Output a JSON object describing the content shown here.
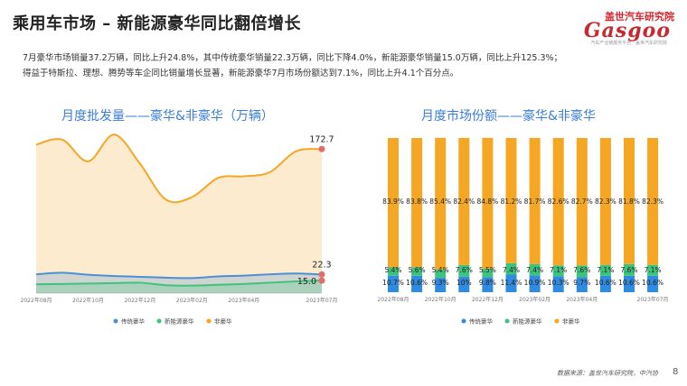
{
  "header": {
    "title": "乘用车市场 – 新能源豪华同比翻倍增长",
    "logo_cn": "盖世汽车研究院",
    "logo_word": "Gasgoo",
    "logo_sub": "汽车产业链服务平台 · 盖世汽车研究院"
  },
  "description": {
    "line1": "7月豪华市场销量37.2万辆，同比上升24.8%，其中传统豪华销量22.3万辆，同比下降4.0%，新能源豪华销量15.0万辆，同比上升125.3%；",
    "line2": "得益于特斯拉、理想、腾势等车企同比销量增长显著，新能源豪华7月市场份额达到7.1%，同比上升4.1个百分点。"
  },
  "footer": {
    "source": "数据来源：盖世汽车研究院，中汽协",
    "page": "8"
  },
  "chart_data": [
    {
      "type": "area",
      "title": "月度批发量——豪华&非豪华（万辆）",
      "x": [
        "2022年08月",
        "2022年09月",
        "2022年10月",
        "2022年11月",
        "2022年12月",
        "2023年01月",
        "2023年02月",
        "2023年03月",
        "2023年04月",
        "2023年05月",
        "2023年06月",
        "2023年07月"
      ],
      "x_tick_labels": [
        "2022年08月",
        "2022年10月",
        "2022年12月",
        "2023年02月",
        "2023年04月",
        "2023年07月"
      ],
      "series": [
        {
          "name": "传统豪华",
          "color": "#4a90d9",
          "values": [
            22.5,
            24.5,
            22.0,
            20.5,
            19.5,
            18.5,
            18.0,
            20.0,
            21.0,
            22.5,
            23.5,
            22.3
          ]
        },
        {
          "name": "新能源豪华",
          "color": "#3cc47c",
          "values": [
            10.5,
            11.0,
            11.5,
            12.0,
            12.5,
            9.5,
            9.0,
            10.0,
            11.0,
            12.5,
            14.0,
            15.0
          ]
        },
        {
          "name": "非豪华",
          "color": "#f5a623",
          "values": [
            178,
            184,
            158,
            190,
            155,
            112,
            115,
            138,
            140,
            145,
            170,
            172.7
          ]
        }
      ],
      "data_labels": [
        {
          "series": "非豪华",
          "x": "2023年07月",
          "text": "172.7"
        },
        {
          "series": "传统豪华",
          "x": "2023年07月",
          "text": "22.3"
        },
        {
          "series": "新能源豪华",
          "x": "2023年07月",
          "text": "15.0"
        }
      ],
      "legend": "bottom",
      "grid": false
    },
    {
      "type": "bar",
      "stacked": true,
      "title": "月度市场份额——豪华&非豪华",
      "categories": [
        "2022年08月",
        "2022年09月",
        "2022年10月",
        "2022年11月",
        "2022年12月",
        "2023年01月",
        "2023年02月",
        "2023年03月",
        "2023年04月",
        "2023年05月",
        "2023年06月",
        "2023年07月"
      ],
      "x_tick_labels": [
        "2022年08月",
        "2022年10月",
        "2022年12月",
        "2023年02月",
        "2023年04月",
        "2023年07月"
      ],
      "series": [
        {
          "name": "传统豪华",
          "color": "#2f8be0",
          "values": [
            10.7,
            10.6,
            9.3,
            10.0,
            9.8,
            11.4,
            10.9,
            10.3,
            9.7,
            10.6,
            10.6,
            10.6
          ],
          "labels": [
            "10.7%",
            "10.6%",
            "9.3%",
            "10%",
            "9.8%",
            "11.4%",
            "10.9%",
            "10.3%",
            "9.7%",
            "10.6%",
            "10.6%",
            "10.6%"
          ]
        },
        {
          "name": "新能源豪华",
          "color": "#3cc47c",
          "values": [
            5.4,
            5.6,
            5.4,
            7.6,
            5.5,
            7.4,
            7.4,
            7.1,
            7.6,
            7.1,
            7.6,
            7.1
          ],
          "labels": [
            "5.4%",
            "5.6%",
            "5.4%",
            "7.6%",
            "5.5%",
            "7.4%",
            "7.4%",
            "7.1%",
            "7.6%",
            "7.1%",
            "7.6%",
            "7.1%"
          ]
        },
        {
          "name": "非豪华",
          "color": "#f5a623",
          "values": [
            83.9,
            83.8,
            85.4,
            82.4,
            84.8,
            81.2,
            81.7,
            82.6,
            82.7,
            82.3,
            81.8,
            82.3
          ],
          "labels": [
            "83.9%",
            "83.8%",
            "85.4%",
            "82.4%",
            "84.8%",
            "81.2%",
            "81.7%",
            "82.6%",
            "82.7%",
            "82.3%",
            "81.8%",
            "82.3%"
          ]
        }
      ],
      "ylim": [
        0,
        100
      ],
      "legend": "bottom",
      "grid": false
    }
  ]
}
